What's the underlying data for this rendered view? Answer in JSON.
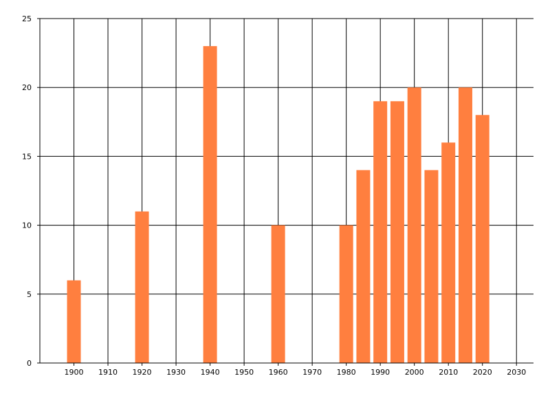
{
  "chart_data": {
    "type": "bar",
    "title": "",
    "xlabel": "",
    "ylabel": "",
    "xlim": [
      1890,
      2035
    ],
    "ylim": [
      0,
      25
    ],
    "x_ticks": [
      1900,
      1910,
      1920,
      1930,
      1940,
      1950,
      1960,
      1970,
      1980,
      1990,
      2000,
      2010,
      2020,
      2030
    ],
    "y_ticks": [
      0,
      5,
      10,
      15,
      20,
      25
    ],
    "grid": true,
    "legend": "none",
    "bar_color": "#ff7f3f",
    "grid_color": "#000000",
    "series": [
      {
        "x": [
          1900,
          1920,
          1940,
          1960,
          1980,
          1985,
          1990,
          1995,
          2000,
          2005,
          2010,
          2015,
          2020
        ],
        "values": [
          6,
          11,
          23,
          10,
          10,
          14,
          19,
          19,
          20,
          14,
          16,
          20,
          18
        ]
      }
    ]
  }
}
